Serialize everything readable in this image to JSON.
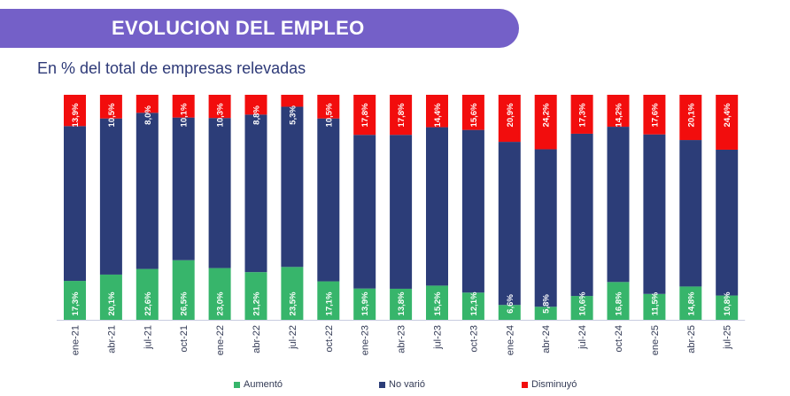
{
  "header": {
    "title": "EVOLUCION DEL EMPLEO",
    "subtitle": "En % del total de empresas relevadas"
  },
  "colors": {
    "banner": "#7460c8",
    "aumento": "#37b56b",
    "no_vario": "#2c3d78",
    "disminuyo": "#f20d0d"
  },
  "chart_data": {
    "type": "bar",
    "stacked": true,
    "normalized_100": true,
    "categories": [
      "ene-21",
      "abr-21",
      "jul-21",
      "oct-21",
      "ene-22",
      "abr-22",
      "jul-22",
      "oct-22",
      "ene-23",
      "abr-23",
      "jul-23",
      "oct-23",
      "ene-24",
      "abr-24",
      "jul-24",
      "oct-24",
      "ene-25",
      "abr-25",
      "jul-25"
    ],
    "series": [
      {
        "name": "Aumentó",
        "color": "#37b56b",
        "values": [
          17.3,
          20.1,
          22.6,
          26.5,
          23.0,
          21.2,
          23.5,
          17.1,
          13.9,
          13.8,
          15.2,
          12.1,
          6.6,
          5.8,
          10.6,
          16.8,
          11.5,
          14.8,
          10.8
        ],
        "labels": [
          "17,3%",
          "20,1%",
          "22,6%",
          "26,5%",
          "23,0%",
          "21,2%",
          "23,5%",
          "17,1%",
          "13,9%",
          "13,8%",
          "15,2%",
          "12,1%",
          "6,6%",
          "5,8%",
          "10,6%",
          "16,8%",
          "11,5%",
          "14,8%",
          "10,8%"
        ]
      },
      {
        "name": "No varió",
        "color": "#2c3d78",
        "values": [
          68.8,
          69.4,
          69.4,
          63.4,
          66.7,
          70.0,
          71.2,
          72.4,
          68.3,
          68.4,
          70.4,
          72.3,
          72.5,
          70.0,
          72.1,
          69.0,
          70.9,
          65.1,
          64.8
        ]
      },
      {
        "name": "Disminuyó",
        "color": "#f20d0d",
        "values": [
          13.9,
          10.5,
          8.0,
          10.1,
          10.3,
          8.8,
          5.3,
          10.5,
          17.8,
          17.8,
          14.4,
          15.6,
          20.9,
          24.2,
          17.3,
          14.2,
          17.6,
          20.1,
          24.4
        ],
        "labels": [
          "13,9%",
          "10,5%",
          "8,0%",
          "10,1%",
          "10,3%",
          "8,8%",
          "5,3%",
          "10,5%",
          "17,8%",
          "17,8%",
          "14,4%",
          "15,6%",
          "20,9%",
          "24,2%",
          "17,3%",
          "14,2%",
          "17,6%",
          "20,1%",
          "24,4%"
        ]
      }
    ],
    "ylim": [
      0,
      100
    ],
    "legend_position": "bottom",
    "grid": false
  }
}
